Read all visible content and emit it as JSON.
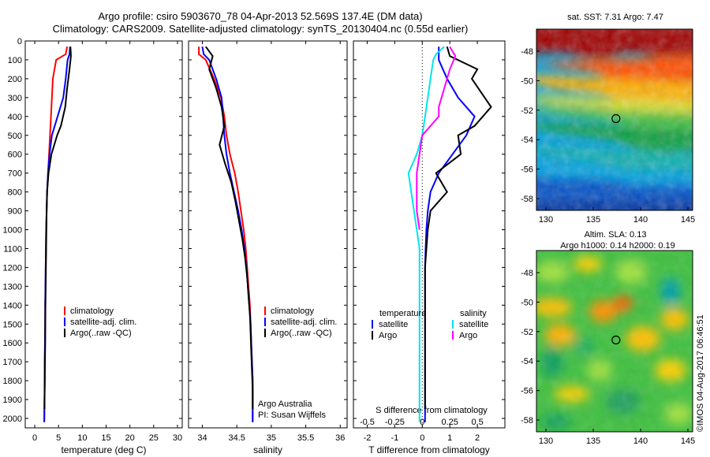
{
  "header": {
    "line1": "Argo profile: csiro 5903670_78 04-Apr-2013 52.569S 137.4E (DM data)",
    "line2": "Climatology: CARS2009. Satellite-adjusted climatology: synTS_20130404.nc (0.55d earlier)"
  },
  "watermark": "©IMOS 04-Aug-2017 06:46:51",
  "colors": {
    "climatology": "#ff0000",
    "satellite": "#0000ff",
    "argo": "#000000",
    "salinity_sat": "#00e5ee",
    "salinity_argo": "#ff00ff"
  },
  "chart_data": [
    {
      "type": "line",
      "id": "temperature",
      "xlabel": "temperature (deg C)",
      "ylabel": "",
      "xlim": [
        -2,
        31
      ],
      "ylim": [
        2050,
        0
      ],
      "xticks": [
        0,
        5,
        10,
        15,
        20,
        25,
        30
      ],
      "yticks": [
        0,
        100,
        200,
        300,
        400,
        500,
        600,
        700,
        800,
        900,
        1000,
        1100,
        1200,
        1300,
        1400,
        1500,
        1600,
        1700,
        1800,
        1900,
        2000
      ],
      "legend": [
        "climatology",
        "satellite-adj. clim.",
        "Argo(..raw -QC)"
      ],
      "legend_position": "lower-right",
      "series": [
        {
          "name": "climatology",
          "color": "#ff0000",
          "x": [
            6.8,
            6.5,
            4.5,
            3.8,
            3.6,
            3.4,
            3.2,
            3.0,
            2.8,
            2.6,
            2.5,
            2.4,
            2.35,
            2.3,
            2.25,
            2.2,
            2.2,
            2.15,
            2.1,
            2.1,
            2.05,
            2.0
          ],
          "y": [
            30,
            70,
            100,
            200,
            300,
            400,
            500,
            600,
            700,
            800,
            900,
            1000,
            1100,
            1200,
            1300,
            1400,
            1500,
            1600,
            1700,
            1800,
            1900,
            2020
          ]
        },
        {
          "name": "satellite-adj. clim.",
          "color": "#0000ff",
          "x": [
            7.4,
            7.3,
            6.9,
            6.5,
            6.0,
            4.8,
            3.6,
            3.1,
            2.8,
            2.6,
            2.5,
            2.4,
            2.35,
            2.3,
            2.25,
            2.2,
            2.2,
            2.15,
            2.1,
            2.1,
            2.05,
            2.0
          ],
          "y": [
            30,
            70,
            100,
            200,
            300,
            400,
            500,
            600,
            700,
            800,
            900,
            1000,
            1100,
            1200,
            1300,
            1400,
            1500,
            1600,
            1700,
            1800,
            1900,
            2020
          ]
        },
        {
          "name": "Argo(..raw -QC)",
          "color": "#000000",
          "x": [
            7.5,
            7.6,
            7.3,
            6.8,
            6.4,
            5.5,
            4.7,
            3.5,
            2.9,
            2.6,
            2.5,
            2.45,
            2.4,
            2.35,
            2.3,
            2.25,
            2.2,
            2.2,
            2.15,
            2.1,
            2.05
          ],
          "y": [
            30,
            80,
            150,
            250,
            350,
            450,
            500,
            600,
            700,
            800,
            900,
            1000,
            1100,
            1200,
            1300,
            1400,
            1500,
            1600,
            1700,
            1800,
            1950
          ]
        }
      ]
    },
    {
      "type": "line",
      "id": "salinity",
      "xlabel": "salinity",
      "ylabel": "",
      "xlim": [
        33.8,
        36.1
      ],
      "ylim": [
        2050,
        0
      ],
      "xticks": [
        34,
        34.5,
        35,
        35.5,
        36
      ],
      "legend": [
        "climatology",
        "satellite-adj. clim.",
        "Argo(..raw -QC)"
      ],
      "legend_position": "lower-right",
      "annotation_line1": "Argo Australia",
      "annotation_line2": "PI: Susan Wijffels",
      "series": [
        {
          "name": "climatology",
          "color": "#ff0000",
          "x": [
            33.95,
            33.95,
            34.05,
            34.17,
            34.27,
            34.32,
            34.35,
            34.4,
            34.47,
            34.52,
            34.56,
            34.6,
            34.63,
            34.65,
            34.67,
            34.69,
            34.7,
            34.71,
            34.72,
            34.73,
            34.73,
            34.73
          ],
          "y": [
            30,
            70,
            100,
            200,
            300,
            400,
            500,
            600,
            700,
            800,
            900,
            1000,
            1100,
            1200,
            1300,
            1400,
            1500,
            1600,
            1700,
            1800,
            1900,
            2020
          ]
        },
        {
          "name": "satellite-adj. clim.",
          "color": "#0000ff",
          "x": [
            34.0,
            34.02,
            34.1,
            34.2,
            34.28,
            34.3,
            34.32,
            34.35,
            34.4,
            34.46,
            34.52,
            34.57,
            34.61,
            34.64,
            34.66,
            34.68,
            34.7,
            34.71,
            34.72,
            34.73,
            34.73,
            34.73
          ],
          "y": [
            30,
            70,
            100,
            200,
            300,
            400,
            500,
            600,
            700,
            800,
            900,
            1000,
            1100,
            1200,
            1300,
            1400,
            1500,
            1600,
            1700,
            1800,
            1900,
            2020
          ]
        },
        {
          "name": "Argo(..raw -QC)",
          "color": "#000000",
          "x": [
            34.05,
            34.15,
            34.1,
            34.2,
            34.28,
            34.32,
            34.25,
            34.33,
            34.42,
            34.48,
            34.53,
            34.58,
            34.62,
            34.65,
            34.67,
            34.69,
            34.7,
            34.71,
            34.72,
            34.73,
            34.73
          ],
          "y": [
            30,
            80,
            150,
            250,
            350,
            450,
            550,
            650,
            750,
            850,
            950,
            1050,
            1150,
            1250,
            1350,
            1450,
            1550,
            1650,
            1750,
            1850,
            1950
          ]
        }
      ]
    },
    {
      "type": "line",
      "id": "difference",
      "xlabel": "T difference from climatology",
      "xlabel_top": "S difference from climatology",
      "xlim": [
        -2.5,
        3.0
      ],
      "ylim": [
        2050,
        0
      ],
      "xticks": [
        -2,
        -1,
        0,
        1,
        2
      ],
      "x2ticks": [
        -0.5,
        -0.25,
        0,
        0.25,
        0.5
      ],
      "x2ticklabels": [
        "-0.5",
        "-0.25",
        "0",
        "0.25",
        "0.5"
      ],
      "legend_col1_title": "temperature",
      "legend_col2_title": "salinity",
      "legend": [
        "satellite",
        "Argo",
        "satellite",
        "Argo"
      ],
      "legend_position": "lower-right",
      "series": [
        {
          "name": "satellite",
          "variable": "temperature",
          "color": "#0000ff",
          "x": [
            0.6,
            0.6,
            0.6,
            0.9,
            1.3,
            1.9,
            1.6,
            1.1,
            0.6,
            0.3,
            0.2,
            0.15,
            0.12,
            0.1,
            0.1,
            0.1,
            0.1,
            0.1,
            0.1,
            0.1,
            0.1,
            0.1
          ],
          "y": [
            30,
            70,
            100,
            200,
            300,
            400,
            500,
            600,
            700,
            800,
            900,
            1000,
            1100,
            1200,
            1300,
            1400,
            1500,
            1600,
            1700,
            1800,
            1900,
            2020
          ]
        },
        {
          "name": "Argo",
          "variable": "temperature",
          "color": "#000000",
          "x": [
            0.9,
            1.0,
            2.0,
            1.8,
            2.5,
            1.9,
            1.3,
            1.4,
            0.5,
            0.9,
            0.3,
            0.2,
            0.15,
            0.1,
            0.1,
            0.1,
            0.1,
            0.1,
            0.1,
            0.1,
            0.1
          ],
          "y": [
            30,
            80,
            150,
            200,
            350,
            450,
            500,
            600,
            700,
            800,
            900,
            1000,
            1100,
            1200,
            1300,
            1400,
            1500,
            1600,
            1700,
            1800,
            1950
          ]
        },
        {
          "name": "satellite",
          "variable": "salinity",
          "color": "#00e5ee",
          "x": [
            0.8,
            0.5,
            0.4,
            0.3,
            0.2,
            0.1,
            0.0,
            -0.2,
            -0.5,
            -0.4,
            -0.3,
            -0.2,
            -0.1,
            -0.1,
            -0.1,
            -0.1,
            -0.1,
            -0.1,
            -0.1,
            -0.1,
            -0.1,
            -0.1
          ],
          "y": [
            30,
            70,
            100,
            200,
            300,
            400,
            500,
            600,
            700,
            800,
            900,
            1000,
            1100,
            1200,
            1300,
            1400,
            1500,
            1600,
            1700,
            1800,
            1900,
            2020
          ]
        },
        {
          "name": "Argo",
          "variable": "salinity",
          "color": "#ff00ff",
          "x": [
            1.0,
            1.2,
            1.0,
            0.8,
            0.6,
            0.6,
            0.0,
            -0.1,
            -0.2,
            -0.2,
            -0.2,
            -0.1
          ],
          "y": [
            30,
            80,
            150,
            250,
            350,
            400,
            500,
            600,
            700,
            800,
            900,
            1000
          ]
        }
      ]
    },
    {
      "type": "heatmap",
      "id": "sst-map",
      "title": "sat. SST: 7.31  Argo: 7.47",
      "xlim": [
        129,
        145.5
      ],
      "ylim": [
        -58.8,
        -46.5
      ],
      "xticks": [
        130,
        135,
        140,
        145
      ],
      "yticks": [
        -48,
        -50,
        -52,
        -54,
        -56,
        -58
      ],
      "marker": {
        "lon": 137.4,
        "lat": -52.569
      },
      "colormap": [
        "#7f0000",
        "#ff4000",
        "#ffc000",
        "#a0e040",
        "#20c040",
        "#00a0d0",
        "#0040c0"
      ]
    },
    {
      "type": "heatmap",
      "id": "sla-map",
      "title_line1": "Altim. SLA: 0.13",
      "title_line2": "Argo h1000: 0.14  h2000: 0.19",
      "xlim": [
        129,
        145.5
      ],
      "ylim": [
        -58.8,
        -46.5
      ],
      "xticks": [
        130,
        135,
        140,
        145
      ],
      "yticks": [
        -48,
        -50,
        -52,
        -54,
        -56,
        -58
      ],
      "marker": {
        "lon": 137.4,
        "lat": -52.569
      },
      "colormap": [
        "#20c040",
        "#a0e040",
        "#ffc000",
        "#ff4000",
        "#00a0d0"
      ]
    }
  ]
}
